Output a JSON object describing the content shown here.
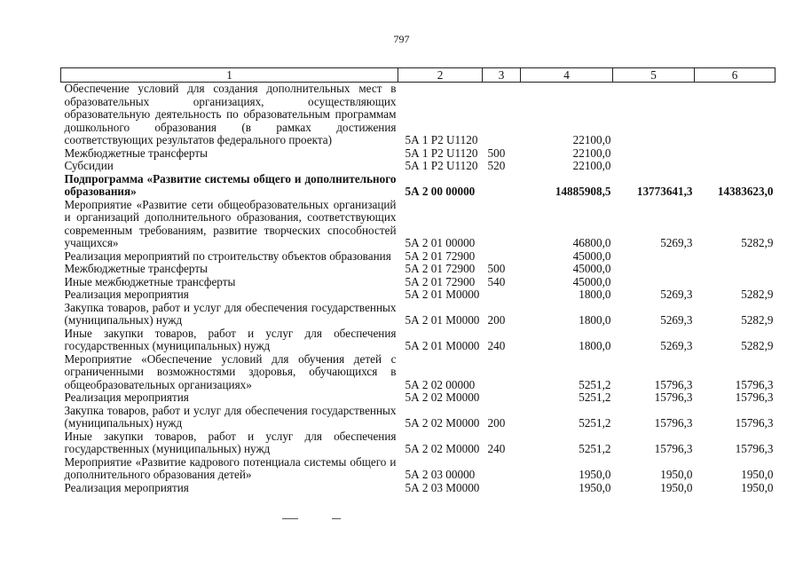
{
  "page_number": "797",
  "headers": [
    "1",
    "2",
    "3",
    "4",
    "5",
    "6"
  ],
  "rows": [
    {
      "name": "Обеспечение условий для создания дополнительных мест в образовательных организациях, осуществляющих образовательную деятельность по образовательным программам дошкольного образования (в рамках достижения соответствующих результатов федерального проекта)",
      "code": "5А 1 Р2 U1120",
      "type": "",
      "y1": "22100,0",
      "y2": "",
      "y3": "",
      "bold": false
    },
    {
      "name": "Межбюджетные трансферты",
      "code": "5А 1 Р2 U1120",
      "type": "500",
      "y1": "22100,0",
      "y2": "",
      "y3": "",
      "bold": false
    },
    {
      "name": "Субсидии",
      "code": "5А 1 Р2 U1120",
      "type": "520",
      "y1": "22100,0",
      "y2": "",
      "y3": "",
      "bold": false
    },
    {
      "name": "Подпрограмма «Развитие системы общего и дополнительного образования»",
      "code": "5А 2 00 00000",
      "type": "",
      "y1": "14885908,5",
      "y2": "13773641,3",
      "y3": "14383623,0",
      "bold": true
    },
    {
      "name": "Мероприятие «Развитие сети общеобразовательных организаций и организаций дополнительного образования, соответствующих современным требованиям, развитие творческих способностей учащихся»",
      "code": "5А 2 01 00000",
      "type": "",
      "y1": "46800,0",
      "y2": "5269,3",
      "y3": "5282,9",
      "bold": false
    },
    {
      "name": "Реализация мероприятий по строительству объектов образования",
      "code": "5А 2 01 72900",
      "type": "",
      "y1": "45000,0",
      "y2": "",
      "y3": "",
      "bold": false
    },
    {
      "name": "Межбюджетные трансферты",
      "code": "5А 2 01 72900",
      "type": "500",
      "y1": "45000,0",
      "y2": "",
      "y3": "",
      "bold": false
    },
    {
      "name": "Иные межбюджетные трансферты",
      "code": "5А 2 01 72900",
      "type": "540",
      "y1": "45000,0",
      "y2": "",
      "y3": "",
      "bold": false
    },
    {
      "name": "Реализация мероприятия",
      "code": "5А 2 01 М0000",
      "type": "",
      "y1": "1800,0",
      "y2": "5269,3",
      "y3": "5282,9",
      "bold": false
    },
    {
      "name": "Закупка товаров, работ и услуг для обеспечения государственных (муниципальных) нужд",
      "code": "5А 2 01 М0000",
      "type": "200",
      "y1": "1800,0",
      "y2": "5269,3",
      "y3": "5282,9",
      "bold": false
    },
    {
      "name": "Иные закупки товаров, работ и услуг для обеспечения государственных (муниципальных) нужд",
      "code": "5А 2 01 М0000",
      "type": "240",
      "y1": "1800,0",
      "y2": "5269,3",
      "y3": "5282,9",
      "bold": false
    },
    {
      "name": "Мероприятие «Обеспечение условий для обучения детей с ограниченными возможностями здоровья, обучающихся в общеобразовательных организациях»",
      "code": "5А 2 02 00000",
      "type": "",
      "y1": "5251,2",
      "y2": "15796,3",
      "y3": "15796,3",
      "bold": false
    },
    {
      "name": "Реализация мероприятия",
      "code": "5А 2 02 М0000",
      "type": "",
      "y1": "5251,2",
      "y2": "15796,3",
      "y3": "15796,3",
      "bold": false
    },
    {
      "name": "Закупка товаров, работ и услуг для обеспечения государственных (муниципальных) нужд",
      "code": "5А 2 02 М0000",
      "type": "200",
      "y1": "5251,2",
      "y2": "15796,3",
      "y3": "15796,3",
      "bold": false
    },
    {
      "name": "Иные закупки товаров, работ и услуг для обеспечения государственных (муниципальных) нужд",
      "code": "5А 2 02 М0000",
      "type": "240",
      "y1": "5251,2",
      "y2": "15796,3",
      "y3": "15796,3",
      "bold": false
    },
    {
      "name": "Мероприятие «Развитие кадрового потенциала системы общего и дополнительного образования детей»",
      "code": "5А 2 03 00000",
      "type": "",
      "y1": "1950,0",
      "y2": "1950,0",
      "y3": "1950,0",
      "bold": false
    },
    {
      "name": "Реализация мероприятия",
      "code": "5А 2 03 М0000",
      "type": "",
      "y1": "1950,0",
      "y2": "1950,0",
      "y3": "1950,0",
      "bold": false
    }
  ]
}
